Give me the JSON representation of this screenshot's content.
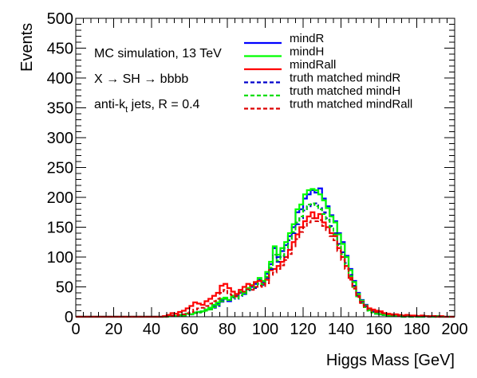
{
  "chart_data": {
    "type": "line",
    "step": true,
    "x": [
      0,
      2,
      4,
      6,
      8,
      10,
      12,
      14,
      16,
      18,
      20,
      22,
      24,
      26,
      28,
      30,
      32,
      34,
      36,
      38,
      40,
      42,
      44,
      46,
      48,
      50,
      52,
      54,
      56,
      58,
      60,
      62,
      64,
      66,
      68,
      70,
      72,
      74,
      76,
      78,
      80,
      82,
      84,
      86,
      88,
      90,
      92,
      94,
      96,
      98,
      100,
      102,
      104,
      106,
      108,
      110,
      112,
      114,
      116,
      118,
      120,
      122,
      124,
      126,
      128,
      130,
      132,
      134,
      136,
      138,
      140,
      142,
      144,
      146,
      148,
      150,
      152,
      154,
      156,
      158,
      160,
      162,
      164,
      166,
      168,
      170,
      172,
      174,
      176,
      178,
      180,
      182,
      184,
      186,
      188,
      190,
      192,
      194,
      196,
      198
    ],
    "series": [
      {
        "name": "mindR",
        "color": "#0000ff",
        "dashed": false,
        "values": [
          0,
          0,
          0,
          0,
          0,
          0,
          0,
          0,
          0,
          0,
          0,
          0,
          0,
          0,
          0,
          0,
          0,
          0,
          0,
          0,
          0,
          0,
          0,
          0,
          1,
          2,
          1,
          3,
          2,
          5,
          4,
          7,
          8,
          9,
          12,
          14,
          18,
          22,
          28,
          30,
          26,
          33,
          35,
          40,
          38,
          46,
          50,
          55,
          62,
          58,
          72,
          88,
          115,
          100,
          110,
          120,
          135,
          150,
          175,
          180,
          198,
          205,
          212,
          208,
          215,
          198,
          185,
          170,
          160,
          140,
          125,
          102,
          80,
          60,
          40,
          28,
          20,
          12,
          9,
          6,
          4,
          3,
          2,
          2,
          1,
          1,
          0,
          1,
          0,
          1,
          0,
          0,
          1,
          0,
          0,
          1,
          0,
          0,
          0,
          0
        ]
      },
      {
        "name": "mindH",
        "color": "#00ff00",
        "dashed": false,
        "values": [
          0,
          0,
          0,
          0,
          0,
          0,
          0,
          0,
          0,
          0,
          0,
          0,
          0,
          0,
          0,
          0,
          0,
          0,
          0,
          0,
          0,
          0,
          0,
          0,
          1,
          2,
          1,
          3,
          2,
          5,
          4,
          7,
          8,
          9,
          12,
          15,
          20,
          24,
          30,
          32,
          28,
          35,
          38,
          42,
          40,
          48,
          53,
          58,
          65,
          60,
          75,
          92,
          118,
          104,
          115,
          125,
          140,
          155,
          180,
          188,
          205,
          212,
          214,
          212,
          205,
          195,
          182,
          168,
          158,
          138,
          122,
          100,
          78,
          58,
          38,
          27,
          19,
          11,
          8,
          5,
          4,
          3,
          2,
          2,
          1,
          1,
          0,
          1,
          0,
          1,
          0,
          0,
          1,
          0,
          0,
          1,
          0,
          0,
          0,
          0
        ]
      },
      {
        "name": "mindRall",
        "color": "#ff0000",
        "dashed": false,
        "values": [
          0,
          0,
          0,
          0,
          0,
          0,
          0,
          0,
          0,
          0,
          0,
          0,
          0,
          0,
          0,
          0,
          0,
          0,
          0,
          0,
          0,
          0,
          0,
          1,
          3,
          6,
          5,
          8,
          10,
          14,
          18,
          24,
          22,
          20,
          26,
          30,
          35,
          40,
          52,
          55,
          48,
          42,
          38,
          45,
          50,
          55,
          52,
          58,
          60,
          55,
          62,
          78,
          80,
          85,
          92,
          100,
          112,
          125,
          138,
          150,
          160,
          168,
          175,
          165,
          172,
          158,
          150,
          140,
          135,
          115,
          100,
          85,
          65,
          50,
          35,
          25,
          18,
          14,
          12,
          10,
          9,
          6,
          5,
          4,
          4,
          3,
          2,
          3,
          2,
          2,
          1,
          2,
          1,
          1,
          1,
          0,
          1,
          0,
          0,
          0
        ]
      },
      {
        "name": "truth matched mindR",
        "color": "#0000cc",
        "dashed": true,
        "values": [
          0,
          0,
          0,
          0,
          0,
          0,
          0,
          0,
          0,
          0,
          0,
          0,
          0,
          0,
          0,
          0,
          0,
          0,
          0,
          0,
          0,
          0,
          0,
          0,
          0,
          1,
          1,
          2,
          2,
          4,
          4,
          6,
          7,
          8,
          10,
          12,
          15,
          18,
          25,
          30,
          28,
          32,
          30,
          35,
          38,
          44,
          46,
          48,
          55,
          53,
          65,
          80,
          102,
          92,
          100,
          115,
          128,
          140,
          155,
          165,
          178,
          185,
          188,
          190,
          182,
          175,
          165,
          152,
          140,
          122,
          108,
          90,
          70,
          52,
          35,
          24,
          17,
          10,
          8,
          5,
          4,
          3,
          2,
          1,
          1,
          1,
          0,
          1,
          0,
          0,
          0,
          0,
          1,
          0,
          0,
          0,
          0,
          0,
          0,
          0
        ]
      },
      {
        "name": "truth matched mindH",
        "color": "#00dd00",
        "dashed": true,
        "values": [
          0,
          0,
          0,
          0,
          0,
          0,
          0,
          0,
          0,
          0,
          0,
          0,
          0,
          0,
          0,
          0,
          0,
          0,
          0,
          0,
          0,
          0,
          0,
          0,
          0,
          1,
          1,
          2,
          2,
          4,
          4,
          6,
          7,
          8,
          10,
          12,
          16,
          20,
          26,
          30,
          28,
          33,
          31,
          36,
          38,
          45,
          47,
          50,
          56,
          54,
          67,
          82,
          104,
          94,
          102,
          116,
          130,
          142,
          158,
          168,
          180,
          188,
          190,
          185,
          180,
          172,
          162,
          150,
          138,
          120,
          105,
          88,
          68,
          50,
          34,
          23,
          16,
          10,
          7,
          5,
          4,
          3,
          2,
          1,
          1,
          1,
          0,
          1,
          0,
          0,
          0,
          0,
          1,
          0,
          0,
          0,
          0,
          0,
          0,
          0
        ]
      },
      {
        "name": "truth matched mindRall",
        "color": "#dd0000",
        "dashed": true,
        "values": [
          0,
          0,
          0,
          0,
          0,
          0,
          0,
          0,
          0,
          0,
          0,
          0,
          0,
          0,
          0,
          0,
          0,
          0,
          0,
          0,
          0,
          0,
          0,
          0,
          1,
          2,
          2,
          3,
          4,
          6,
          8,
          12,
          14,
          15,
          18,
          22,
          26,
          30,
          40,
          45,
          38,
          36,
          34,
          40,
          42,
          46,
          45,
          50,
          52,
          50,
          56,
          70,
          74,
          80,
          86,
          95,
          105,
          118,
          130,
          142,
          150,
          158,
          165,
          160,
          162,
          152,
          145,
          135,
          128,
          110,
          95,
          80,
          62,
          47,
          33,
          23,
          17,
          12,
          10,
          8,
          7,
          5,
          4,
          3,
          3,
          2,
          2,
          2,
          1,
          1,
          1,
          1,
          1,
          0,
          1,
          0,
          0,
          0,
          0,
          0
        ]
      }
    ],
    "xlabel": "Higgs Mass [GeV]",
    "ylabel": "Events",
    "xlim": [
      0,
      200
    ],
    "ylim": [
      0,
      500
    ],
    "xticks": [
      0,
      20,
      40,
      60,
      80,
      100,
      120,
      140,
      160,
      180,
      200
    ],
    "yticks": [
      0,
      50,
      100,
      150,
      200,
      250,
      300,
      350,
      400,
      450,
      500
    ],
    "grid": false,
    "legend_position": "top-right",
    "annotations": [
      "MC simulation, 13 TeV",
      "X → SH → bbbb",
      "anti-k",
      "t",
      " jets, R = 0.4"
    ]
  }
}
